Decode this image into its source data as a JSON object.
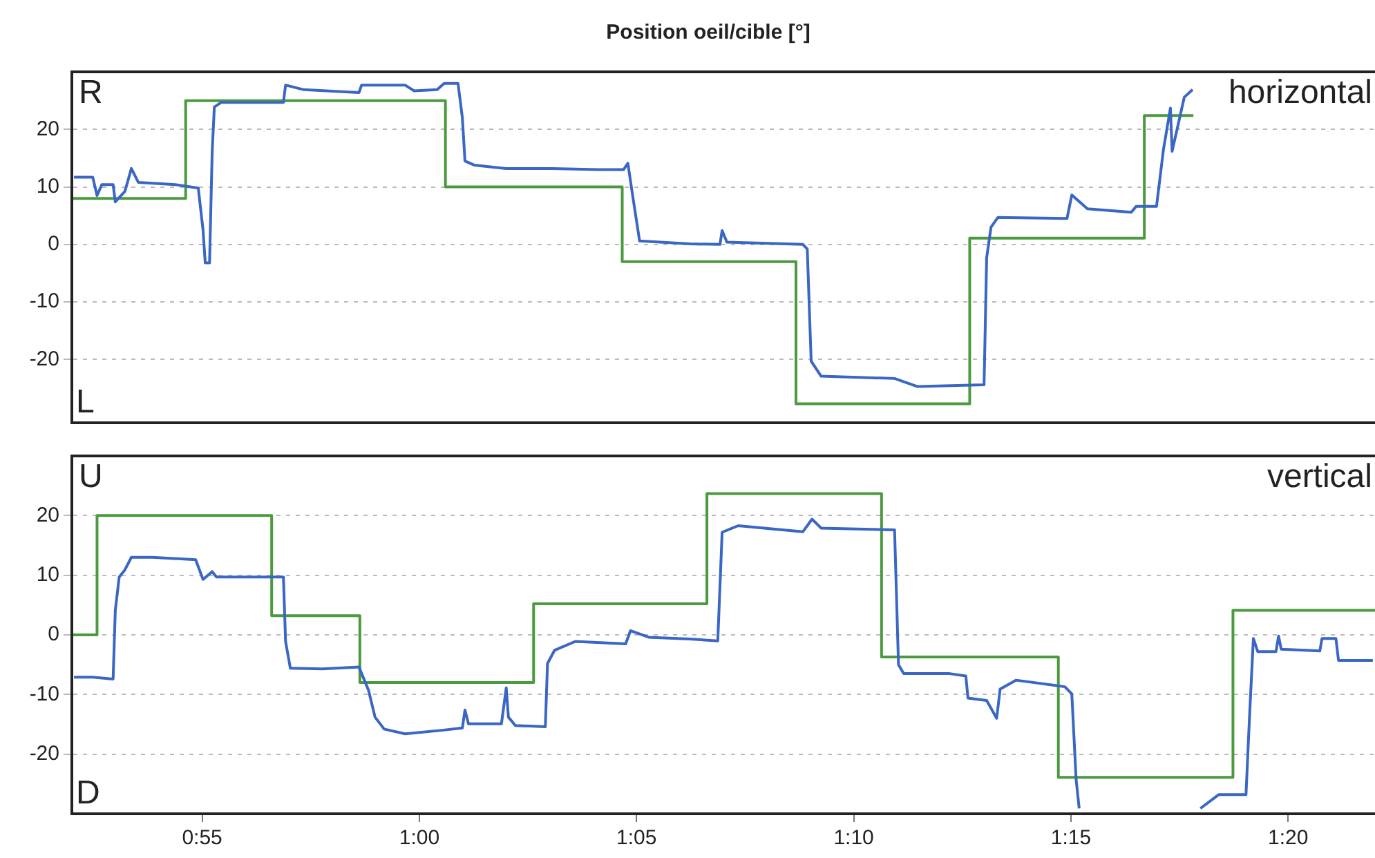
{
  "chart_data": [
    {
      "type": "line",
      "title": "Position oeil/cible [°]",
      "annotations": [
        "R",
        "L",
        "horizontal"
      ],
      "xlim": [
        52,
        82
      ],
      "ylim": [
        -31,
        30
      ],
      "yticks": [
        -20,
        -10,
        0,
        10,
        20
      ],
      "grid": "y",
      "tick_labels": "y",
      "series": [
        {
          "type": "line",
          "color": "#3a66c4",
          "x": [
            52.05,
            52.48,
            52.58,
            52.69,
            52.95,
            53.0,
            53.22,
            53.37,
            53.53,
            54.38,
            54.91,
            55.02,
            55.07,
            55.17,
            55.23,
            55.28,
            55.44,
            56.55,
            56.87,
            56.92,
            57.34,
            58.61,
            58.67,
            59.67,
            59.88,
            60.41,
            60.57,
            60.89,
            60.99,
            61.05,
            61.26,
            62.0,
            63.06,
            64.11,
            64.7,
            64.8,
            64.91,
            65.07,
            66.23,
            66.92,
            66.97,
            67.08,
            68.83,
            68.93,
            69.02,
            69.25,
            70.94,
            71.47,
            73.0,
            73.06,
            73.16,
            73.32,
            74.91,
            75.02,
            75.38,
            76.39,
            76.5,
            76.97,
            77.13,
            77.29,
            77.33,
            77.61,
            77.8
          ],
          "values": [
            11.7,
            11.7,
            8.5,
            10.4,
            10.4,
            7.4,
            9.2,
            13.2,
            10.8,
            10.4,
            9.8,
            2.5,
            -3.2,
            -3.2,
            16,
            23.9,
            24.7,
            24.7,
            24.7,
            27.7,
            26.9,
            26.4,
            27.7,
            27.7,
            26.7,
            26.9,
            28,
            28,
            22,
            14.5,
            13.8,
            13.2,
            13.2,
            13,
            13,
            14.1,
            8.5,
            0.6,
            0.1,
            0,
            2.4,
            0.4,
            0,
            -0.8,
            -20.3,
            -22.9,
            -23.3,
            -24.7,
            -24.4,
            -2.3,
            3,
            4.7,
            4.5,
            8.6,
            6.2,
            5.6,
            6.6,
            6.6,
            16.5,
            23.7,
            16.2,
            25.6,
            26.9
          ]
        },
        {
          "type": "step",
          "color": "#4c9a3f",
          "x": [
            52,
            54.62,
            60.6,
            64.67,
            68.67,
            72.67,
            76.69,
            77.82
          ],
          "values": [
            8,
            25,
            10,
            -3,
            -27.7,
            1.1,
            22.4,
            22.4
          ]
        }
      ]
    },
    {
      "type": "line",
      "annotations": [
        "U",
        "D",
        "vertical"
      ],
      "xlim": [
        52,
        82
      ],
      "xticks": [
        {
          "value": 55,
          "label": "0:55"
        },
        {
          "value": 60,
          "label": "1:00"
        },
        {
          "value": 65,
          "label": "1:05"
        },
        {
          "value": 70,
          "label": "1:10"
        },
        {
          "value": 75,
          "label": "1:15"
        },
        {
          "value": 80,
          "label": "1:20"
        }
      ],
      "ylim": [
        -30,
        30
      ],
      "yticks": [
        -20,
        -10,
        0,
        10,
        20
      ],
      "grid": "y",
      "series": [
        {
          "type": "line",
          "color": "#3a66c4",
          "x": [
            52.05,
            52.48,
            52.95,
            53.0,
            53.09,
            53.22,
            53.37,
            53.85,
            54.85,
            55.02,
            55.23,
            55.33,
            56.87,
            56.92,
            57.03,
            57.77,
            58.61,
            58.83,
            58.98,
            59.19,
            59.67,
            60.52,
            60.99,
            61.05,
            61.13,
            61.89,
            62.0,
            62.05,
            62.21,
            62.9,
            62.95,
            63.11,
            63.59,
            64.75,
            64.86,
            65.28,
            66.23,
            66.87,
            66.97,
            67.34,
            68.83,
            69.04,
            69.25,
            70.94,
            71.03,
            71.15,
            72.21,
            72.58,
            72.63,
            73.06,
            73.29,
            73.37,
            73.74,
            74.86,
            75.02,
            75.12,
            75.19,
            75.3,
            77.98,
            78.4,
            79.03,
            79.11,
            79.2,
            79.3,
            79.72,
            79.78,
            79.84,
            80.73,
            80.78,
            81.1,
            81.16,
            81.95
          ],
          "values": [
            -7.1,
            -7.1,
            -7.4,
            4.1,
            9.7,
            10.9,
            13,
            13,
            12.6,
            9.3,
            10.6,
            9.7,
            9.7,
            -1.1,
            -5.6,
            -5.7,
            -5.4,
            -9.3,
            -13.8,
            -15.8,
            -16.6,
            -16,
            -15.6,
            -12.6,
            -14.9,
            -14.9,
            -8.9,
            -13.8,
            -15.2,
            -15.4,
            -4.8,
            -2.6,
            -1.1,
            -1.5,
            0.7,
            -0.4,
            -0.7,
            -1,
            17.2,
            18.3,
            17.3,
            19.4,
            17.9,
            17.6,
            -5,
            -6.5,
            -6.5,
            -6.9,
            -10.6,
            -11,
            -14,
            -9.1,
            -7.6,
            -8.7,
            -9.9,
            -24.3,
            -29.1,
            null,
            -29.1,
            -26.8,
            -26.8,
            -13.9,
            -0.6,
            -2.8,
            -2.8,
            -0.2,
            -2.4,
            -2.7,
            -0.6,
            -0.6,
            -4.3,
            -4.3
          ]
        },
        {
          "type": "step",
          "color": "#4c9a3f",
          "x": [
            52,
            52.58,
            56.6,
            58.63,
            62.63,
            66.62,
            70.64,
            74.71,
            78.73,
            82
          ],
          "values": [
            0,
            20,
            3.2,
            -8,
            5.2,
            23.7,
            -3.7,
            -23.9,
            4.1,
            4.1
          ]
        }
      ]
    }
  ]
}
